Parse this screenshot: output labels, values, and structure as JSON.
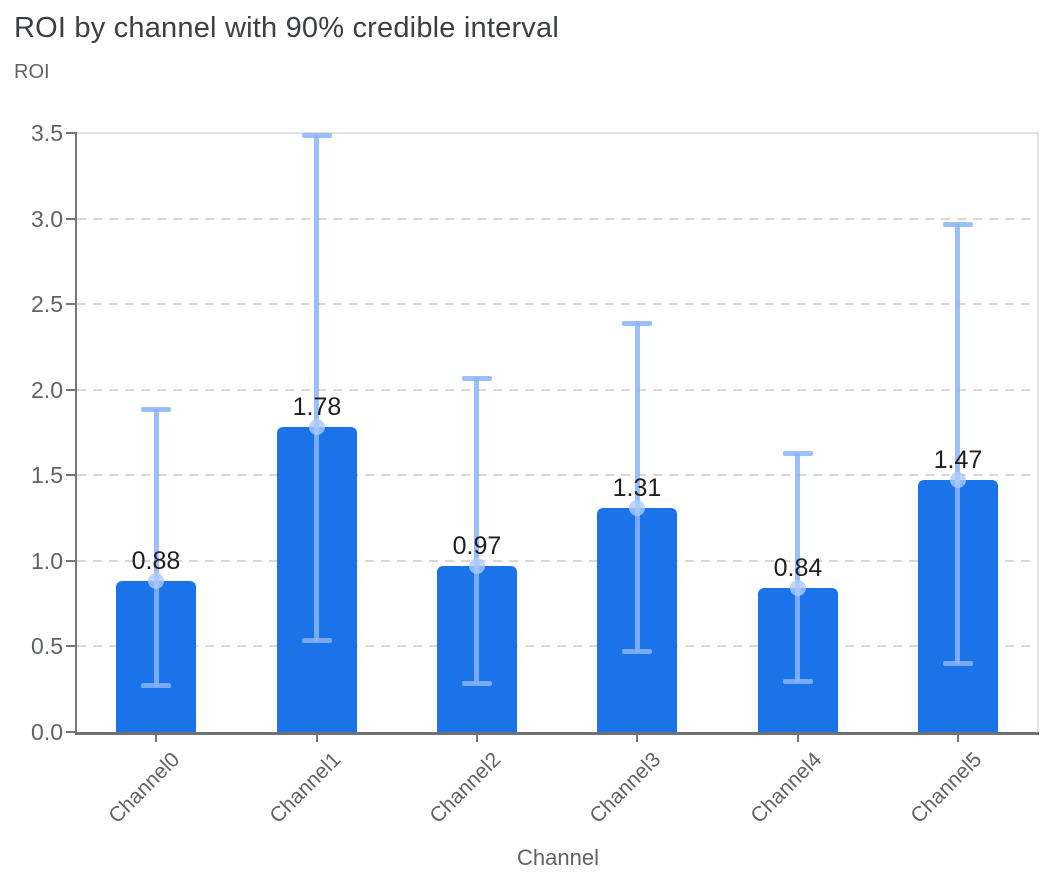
{
  "title": "ROI by channel with 90% credible interval",
  "chart_data": {
    "type": "bar",
    "title": "ROI by channel with 90% credible interval",
    "xlabel": "Channel",
    "ylabel": "ROI",
    "categories": [
      "Channel0",
      "Channel1",
      "Channel2",
      "Channel3",
      "Channel4",
      "Channel5"
    ],
    "values": [
      0.88,
      1.78,
      0.97,
      1.31,
      0.84,
      1.47
    ],
    "bar_labels": [
      "0.88",
      "1.78",
      "0.97",
      "1.31",
      "0.84",
      "1.47"
    ],
    "error_bars": {
      "kind": "90% credible interval",
      "low": [
        0.27,
        0.53,
        0.28,
        0.47,
        0.29,
        0.4
      ],
      "high": [
        1.89,
        3.49,
        2.07,
        2.39,
        1.63,
        2.97
      ]
    },
    "ylim": [
      0,
      3.5
    ],
    "ytick_labels": [
      "0.0",
      "0.5",
      "1.0",
      "1.5",
      "2.0",
      "2.5",
      "3.0",
      "3.5"
    ],
    "grid": "horizontal-dashed",
    "legend": "none",
    "colors": {
      "bar": "#1a73e8",
      "error_bar": "rgba(138,180,248,0.85)",
      "error_marker": "rgba(174,203,250,0.8)",
      "value_label": "#1f1f1f",
      "title": "#3c4043",
      "tick_label": "#5f6368",
      "gridline": "#d8d8d8",
      "axis_line": "#75787b"
    }
  }
}
